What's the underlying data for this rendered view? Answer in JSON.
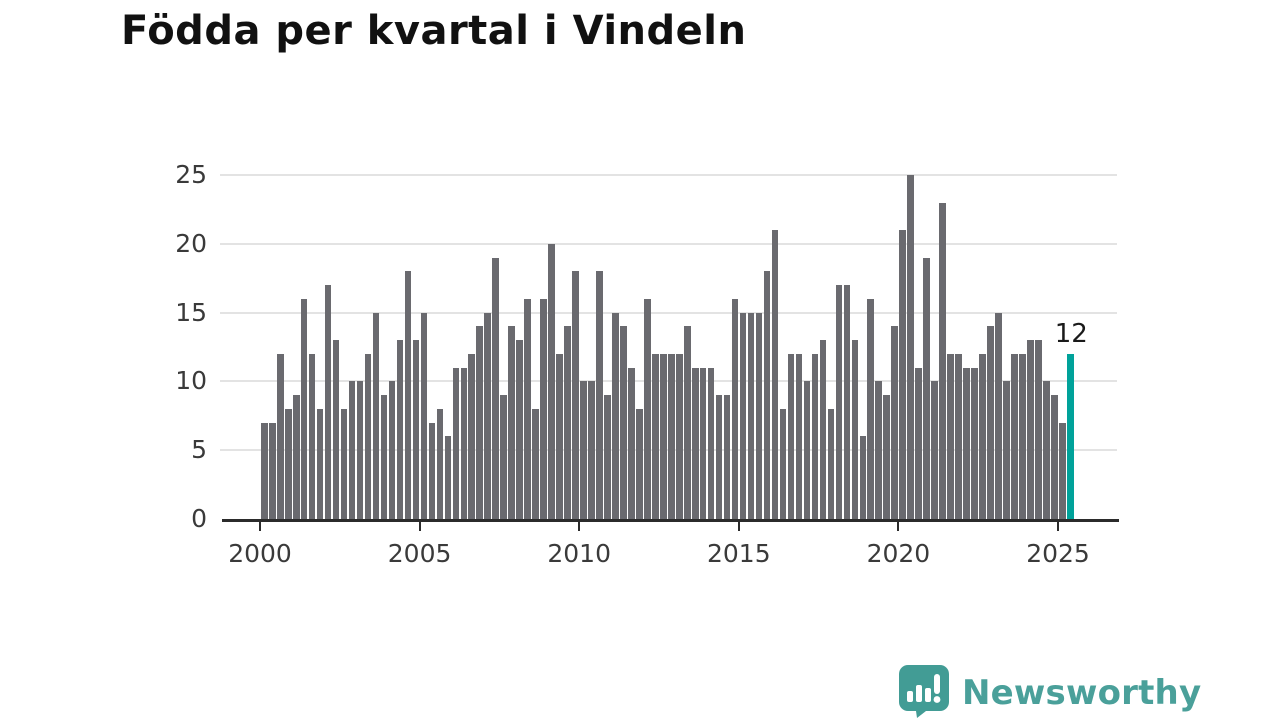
{
  "title": "Födda per kvartal i Vindeln",
  "chart_data": {
    "type": "bar",
    "title": "Födda per kvartal i Vindeln",
    "xlabel": "",
    "ylabel": "",
    "x_start": "2000-Q1",
    "x_end": "2025-Q2",
    "x_tick_labels": [
      "2000",
      "2005",
      "2010",
      "2015",
      "2020",
      "2025"
    ],
    "x_tick_years": [
      2000,
      2005,
      2010,
      2015,
      2020,
      2025
    ],
    "y_tick_labels": [
      "0",
      "5",
      "10",
      "15",
      "20",
      "25"
    ],
    "y_ticks": [
      0,
      5,
      10,
      15,
      20,
      25
    ],
    "ylim": [
      0,
      26
    ],
    "grid": "horizontal",
    "bar_color": "#6a6a6f",
    "highlight_color": "#00a29a",
    "values": [
      7,
      7,
      12,
      8,
      9,
      16,
      12,
      8,
      17,
      13,
      8,
      10,
      10,
      12,
      15,
      9,
      10,
      13,
      18,
      13,
      15,
      7,
      8,
      6,
      11,
      11,
      12,
      14,
      15,
      19,
      9,
      14,
      13,
      16,
      8,
      16,
      20,
      12,
      14,
      18,
      10,
      10,
      18,
      9,
      15,
      14,
      11,
      8,
      16,
      12,
      12,
      12,
      12,
      14,
      11,
      11,
      11,
      9,
      9,
      16,
      15,
      15,
      15,
      18,
      21,
      8,
      12,
      12,
      10,
      12,
      13,
      8,
      17,
      17,
      13,
      6,
      16,
      10,
      9,
      14,
      21,
      25,
      11,
      19,
      10,
      23,
      12,
      12,
      11,
      11,
      12,
      14,
      15,
      10,
      12,
      12,
      13,
      13,
      10,
      9,
      7,
      12
    ],
    "highlight_last_bar": true,
    "last_bar_value_label": "12"
  },
  "footer": {
    "brand": "Newsworthy"
  }
}
